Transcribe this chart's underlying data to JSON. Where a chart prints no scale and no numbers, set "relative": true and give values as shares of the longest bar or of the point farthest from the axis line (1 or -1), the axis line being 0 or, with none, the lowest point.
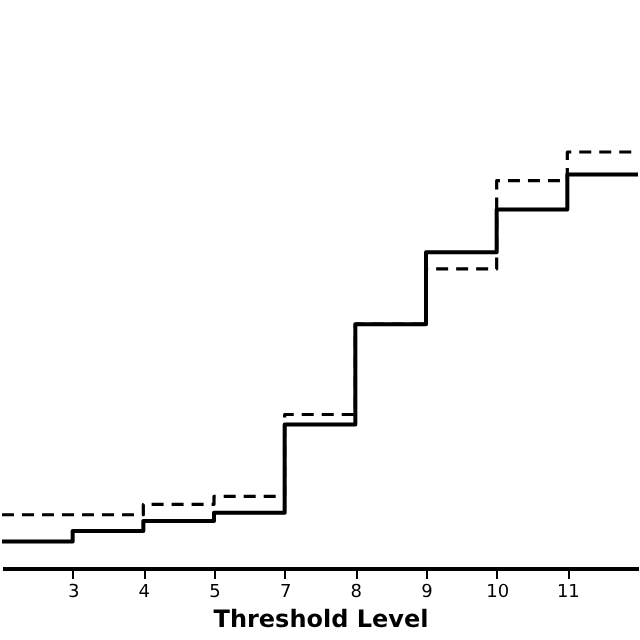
{
  "chart_data": {
    "type": "step",
    "relative": true,
    "xlabel": "Threshold Level",
    "categories": [
      null,
      "3",
      "4",
      "5",
      "7",
      "8",
      "9",
      "10",
      "11",
      null
    ],
    "series": [
      {
        "color": "#000000",
        "line_style": "solid",
        "values": [
          0.064,
          0.089,
          0.113,
          0.133,
          0.345,
          0.586,
          0.759,
          0.862,
          0.946,
          0.946
        ]
      },
      {
        "color": "#000000",
        "line_style": "dashed",
        "values": [
          0.128,
          0.128,
          0.153,
          0.172,
          0.369,
          0.586,
          0.719,
          0.931,
          1.0,
          1.0
        ]
      }
    ],
    "grid": false,
    "marker": "none"
  }
}
